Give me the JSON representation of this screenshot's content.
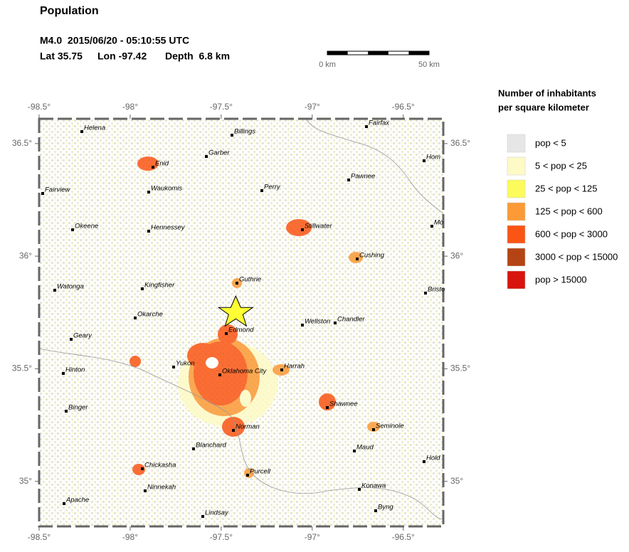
{
  "header": {
    "title": "Population",
    "event": "M4.0  2015/06/20 - 05:10:55 UTC",
    "lat": {
      "value": 35.75,
      "label": "Lat 35.75"
    },
    "lon": {
      "value": -97.42,
      "label": "Lon -97.42"
    },
    "depth": "Depth  6.8 km"
  },
  "scale_bar": {
    "start": "0 km",
    "end": "50 km"
  },
  "map": {
    "xlim": [
      -98.5,
      -96.28
    ],
    "ylim": [
      34.8,
      36.61
    ],
    "xticks": [
      {
        "value": -98.5,
        "label": "-98.5°"
      },
      {
        "value": -98,
        "label": "-98°"
      },
      {
        "value": -97.5,
        "label": "-97.5°"
      },
      {
        "value": -97,
        "label": "-97°"
      },
      {
        "value": -96.5,
        "label": "-96.5°"
      }
    ],
    "yticks": [
      {
        "value": 36.5,
        "label": "36.5°"
      },
      {
        "value": 36,
        "label": "36°"
      },
      {
        "value": 35.5,
        "label": "35.5°"
      },
      {
        "value": 35,
        "label": "35°"
      }
    ],
    "cities": [
      "Helena",
      "Billings",
      "Enid",
      "Garber",
      "Fairfax",
      "Hom",
      "Pawnee",
      "Perry",
      "Fairview",
      "Waukomis",
      "Okeene",
      "Hennessey",
      "Stillwater",
      "Mo",
      "Cushing",
      "Guthrie",
      "Watonga",
      "Kingfisher",
      "Bristo",
      "Okarche",
      "Wellston",
      "Chandler",
      "Edmond",
      "Geary",
      "Yukon",
      "Oklahoma City",
      "Harrah",
      "Hinton",
      "Binger",
      "Shawnee",
      "Seminole",
      "Norman",
      "Blanchard",
      "Maud",
      "Hold",
      "Chickasha",
      "Purcell",
      "Ninnekah",
      "Konawa",
      "Apache",
      "Byng",
      "Lindsay"
    ]
  },
  "legend": {
    "title": [
      "Number of inhabitants",
      "per square kilometer"
    ],
    "items": [
      {
        "label": "pop < 5",
        "color": "#e6e6e6"
      },
      {
        "label": "5 < pop < 25",
        "color": "#fdfac6"
      },
      {
        "label": "25 < pop < 125",
        "color": "#fbfb5c"
      },
      {
        "label": "125 < pop < 600",
        "color": "#fb9a36"
      },
      {
        "label": "600 < pop < 3000",
        "color": "#fa5514"
      },
      {
        "label": "3000 < pop < 15000",
        "color": "#b54414"
      },
      {
        "label": "pop > 15000",
        "color": "#d8140e"
      }
    ]
  }
}
